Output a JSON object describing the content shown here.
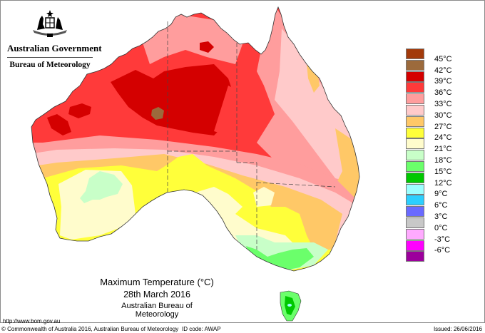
{
  "header": {
    "government": "Australian Government",
    "agency": "Bureau of Meteorology",
    "crest_icon": "coat-of-arms-icon"
  },
  "map": {
    "title": "Maximum Temperature (°C)",
    "date": "28th March 2016",
    "source": "Australian Bureau of Meteorology",
    "region": "Australia"
  },
  "legend": {
    "items": [
      {
        "color": "#a33a0a",
        "label": "45°C"
      },
      {
        "color": "#9c6a3c",
        "label": "42°C"
      },
      {
        "color": "#d40000",
        "label": "39°C"
      },
      {
        "color": "#ff3a3a",
        "label": "36°C"
      },
      {
        "color": "#ff9d9d",
        "label": "33°C"
      },
      {
        "color": "#ffcaca",
        "label": "30°C"
      },
      {
        "color": "#ffc867",
        "label": "27°C"
      },
      {
        "color": "#ffff3a",
        "label": "24°C"
      },
      {
        "color": "#fffccc",
        "label": "21°C"
      },
      {
        "color": "#c8ffc8",
        "label": "18°C"
      },
      {
        "color": "#6bff6b",
        "label": "15°C"
      },
      {
        "color": "#00c800",
        "label": "12°C"
      },
      {
        "color": "#9cffff",
        "label": "9°C"
      },
      {
        "color": "#2ccfff",
        "label": "6°C"
      },
      {
        "color": "#6a6aff",
        "label": "3°C"
      },
      {
        "color": "#c8c8c8",
        "label": "0°C"
      },
      {
        "color": "#ffaaff",
        "label": "-3°C"
      },
      {
        "color": "#ff00ff",
        "label": "-6°C"
      },
      {
        "color": "#9c009c",
        "label": ""
      }
    ]
  },
  "footer": {
    "url": "http://www.bom.gov.au",
    "copyright": "© Commonwealth of Australia 2016, Australian Bureau of Meteorology",
    "id_code": "ID code: AWAP",
    "issued": "Issued: 26/06/2016"
  },
  "colors": {
    "c45": "#a33a0a",
    "c42": "#9c6a3c",
    "c39": "#d40000",
    "c36": "#ff3a3a",
    "c33": "#ff9d9d",
    "c30": "#ffcaca",
    "c27": "#ffc867",
    "c24": "#ffff3a",
    "c21": "#fffccc",
    "c18": "#c8ffc8",
    "c15": "#6bff6b",
    "c12": "#00c800",
    "c9": "#9cffff"
  }
}
